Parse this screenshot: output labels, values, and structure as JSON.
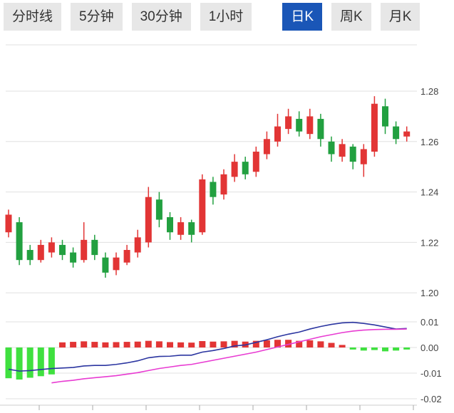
{
  "tabs": [
    {
      "name": "time-line",
      "label": "分时线",
      "active": false
    },
    {
      "name": "5min",
      "label": "5分钟",
      "active": false
    },
    {
      "name": "30min",
      "label": "30分钟",
      "active": false
    },
    {
      "name": "1hour",
      "label": "1小时",
      "active": false
    },
    {
      "name": "daily-k",
      "label": "日K",
      "active": true
    },
    {
      "name": "weekly-k",
      "label": "周K",
      "active": false
    },
    {
      "name": "monthly-k",
      "label": "月K",
      "active": false
    }
  ],
  "colors": {
    "up": "#e23535",
    "down": "#22a040",
    "hist_down": "#3fe03f",
    "dif": "#2b35a0",
    "dea": "#e83bd2",
    "grid": "#e0e0e0",
    "axis_text": "#444444",
    "tab_active_bg": "#1a56b7"
  },
  "chart_data": {
    "type": "candlestick+macd",
    "title": "",
    "legend": [],
    "price_axis": {
      "ticks": [
        "1.28",
        "1.26",
        "1.24",
        "1.22",
        "1.20"
      ],
      "range": [
        1.198,
        1.298
      ]
    },
    "macd_axis": {
      "ticks": [
        "0.01",
        "0.00",
        "-0.01",
        "-0.02"
      ],
      "range": [
        -0.023,
        0.012
      ]
    },
    "candles": [
      {
        "o": 1.224,
        "c": 1.231,
        "h": 1.233,
        "l": 1.222
      },
      {
        "o": 1.228,
        "c": 1.213,
        "h": 1.23,
        "l": 1.211
      },
      {
        "o": 1.217,
        "c": 1.213,
        "h": 1.219,
        "l": 1.211
      },
      {
        "o": 1.213,
        "c": 1.219,
        "h": 1.221,
        "l": 1.212
      },
      {
        "o": 1.216,
        "c": 1.22,
        "h": 1.222,
        "l": 1.214
      },
      {
        "o": 1.219,
        "c": 1.215,
        "h": 1.221,
        "l": 1.213
      },
      {
        "o": 1.216,
        "c": 1.212,
        "h": 1.218,
        "l": 1.21
      },
      {
        "o": 1.213,
        "c": 1.221,
        "h": 1.228,
        "l": 1.212
      },
      {
        "o": 1.221,
        "c": 1.215,
        "h": 1.223,
        "l": 1.213
      },
      {
        "o": 1.214,
        "c": 1.208,
        "h": 1.216,
        "l": 1.206
      },
      {
        "o": 1.209,
        "c": 1.214,
        "h": 1.216,
        "l": 1.207
      },
      {
        "o": 1.212,
        "c": 1.217,
        "h": 1.219,
        "l": 1.211
      },
      {
        "o": 1.216,
        "c": 1.222,
        "h": 1.225,
        "l": 1.214
      },
      {
        "o": 1.22,
        "c": 1.238,
        "h": 1.242,
        "l": 1.218
      },
      {
        "o": 1.237,
        "c": 1.229,
        "h": 1.24,
        "l": 1.226
      },
      {
        "o": 1.23,
        "c": 1.224,
        "h": 1.232,
        "l": 1.221
      },
      {
        "o": 1.223,
        "c": 1.228,
        "h": 1.23,
        "l": 1.221
      },
      {
        "o": 1.228,
        "c": 1.223,
        "h": 1.229,
        "l": 1.22
      },
      {
        "o": 1.224,
        "c": 1.245,
        "h": 1.247,
        "l": 1.223
      },
      {
        "o": 1.244,
        "c": 1.238,
        "h": 1.246,
        "l": 1.235
      },
      {
        "o": 1.239,
        "c": 1.247,
        "h": 1.249,
        "l": 1.237
      },
      {
        "o": 1.246,
        "c": 1.252,
        "h": 1.255,
        "l": 1.244
      },
      {
        "o": 1.252,
        "c": 1.247,
        "h": 1.254,
        "l": 1.245
      },
      {
        "o": 1.248,
        "c": 1.256,
        "h": 1.258,
        "l": 1.246
      },
      {
        "o": 1.255,
        "c": 1.261,
        "h": 1.264,
        "l": 1.253
      },
      {
        "o": 1.26,
        "c": 1.266,
        "h": 1.271,
        "l": 1.258
      },
      {
        "o": 1.265,
        "c": 1.27,
        "h": 1.273,
        "l": 1.263
      },
      {
        "o": 1.269,
        "c": 1.264,
        "h": 1.272,
        "l": 1.262
      },
      {
        "o": 1.263,
        "c": 1.27,
        "h": 1.273,
        "l": 1.261
      },
      {
        "o": 1.269,
        "c": 1.261,
        "h": 1.271,
        "l": 1.258
      },
      {
        "o": 1.26,
        "c": 1.255,
        "h": 1.262,
        "l": 1.252
      },
      {
        "o": 1.254,
        "c": 1.259,
        "h": 1.261,
        "l": 1.252
      },
      {
        "o": 1.258,
        "c": 1.252,
        "h": 1.259,
        "l": 1.249
      },
      {
        "o": 1.251,
        "c": 1.257,
        "h": 1.259,
        "l": 1.246
      },
      {
        "o": 1.256,
        "c": 1.275,
        "h": 1.278,
        "l": 1.254
      },
      {
        "o": 1.274,
        "c": 1.266,
        "h": 1.277,
        "l": 1.263
      },
      {
        "o": 1.266,
        "c": 1.261,
        "h": 1.268,
        "l": 1.259
      },
      {
        "o": 1.262,
        "c": 1.264,
        "h": 1.266,
        "l": 1.26
      }
    ],
    "macd": {
      "hist": [
        -0.012,
        -0.0125,
        -0.0118,
        -0.0112,
        -0.0105,
        0.002,
        0.0022,
        0.0024,
        0.0022,
        0.002,
        0.0021,
        0.0022,
        0.0023,
        0.0026,
        0.0024,
        0.0021,
        0.002,
        0.0019,
        0.0025,
        0.0023,
        0.0024,
        0.0026,
        0.0023,
        0.0026,
        0.0028,
        0.003,
        0.003,
        0.0026,
        0.0028,
        0.0024,
        0.0018,
        0.001,
        -0.0008,
        -0.0012,
        -0.001,
        -0.0015,
        -0.0012,
        -0.0008
      ],
      "dif": [
        -0.0085,
        -0.0092,
        -0.009,
        -0.0086,
        -0.0082,
        -0.008,
        -0.0078,
        -0.0072,
        -0.007,
        -0.007,
        -0.0066,
        -0.006,
        -0.0052,
        -0.004,
        -0.0035,
        -0.0034,
        -0.003,
        -0.003,
        -0.0018,
        -0.0012,
        -0.0004,
        0.0006,
        0.001,
        0.002,
        0.003,
        0.0042,
        0.0052,
        0.006,
        0.0072,
        0.0082,
        0.009,
        0.0096,
        0.0098,
        0.0094,
        0.0088,
        0.008,
        0.0072,
        0.0074
      ],
      "dea": [
        null,
        null,
        null,
        null,
        -0.0138,
        -0.0132,
        -0.0128,
        -0.0122,
        -0.0118,
        -0.0114,
        -0.011,
        -0.0104,
        -0.0098,
        -0.009,
        -0.0082,
        -0.0076,
        -0.007,
        -0.0066,
        -0.0058,
        -0.005,
        -0.0042,
        -0.0034,
        -0.0026,
        -0.0018,
        -0.0008,
        0.0002,
        0.0012,
        0.0022,
        0.0032,
        0.0042,
        0.005,
        0.0058,
        0.0064,
        0.0068,
        0.007,
        0.0071,
        0.0071,
        0.0072
      ]
    }
  }
}
